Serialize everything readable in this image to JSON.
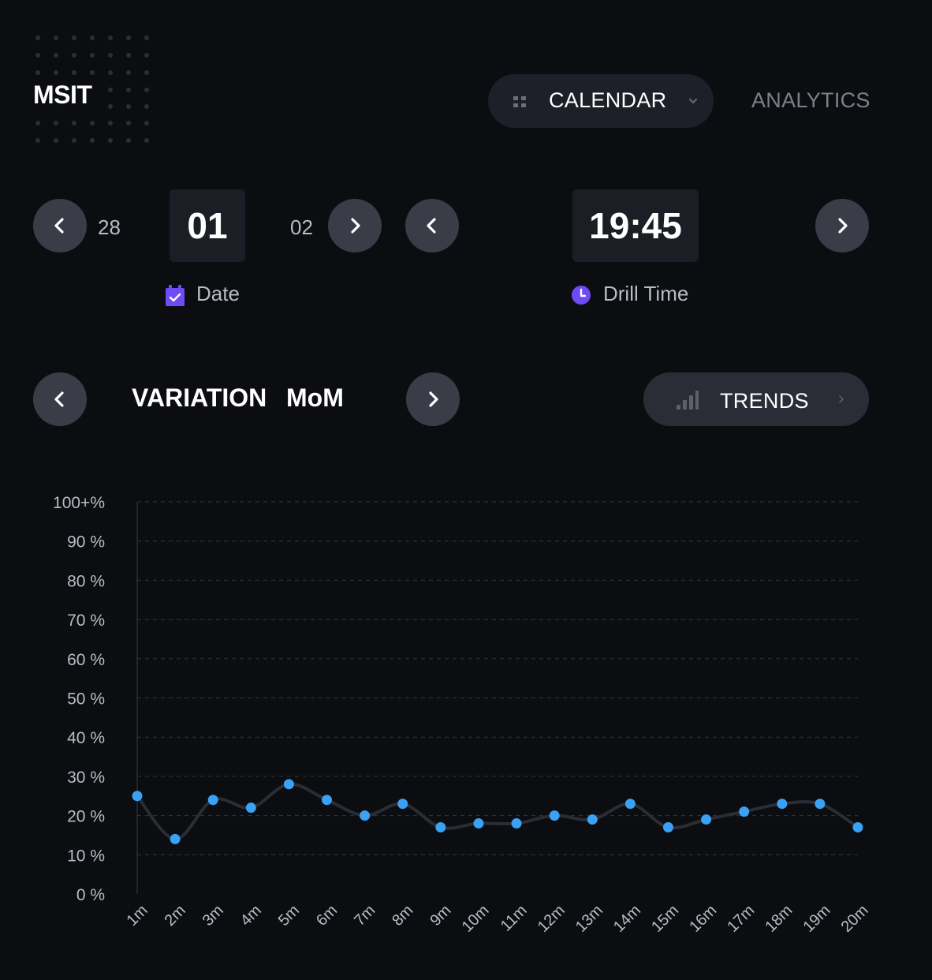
{
  "header": {
    "logo": "MSIT",
    "calendar_tab": {
      "label": "CALENDAR",
      "icon": "grid-icon"
    },
    "analytics_tab": {
      "label": "ANALYTICS"
    }
  },
  "date_picker": {
    "prev": "28",
    "current": "01",
    "next": "02",
    "caption": "Date",
    "icon": "calendar-icon"
  },
  "time_picker": {
    "current": "19:45",
    "caption": "Drill Time",
    "icon": "clock-icon"
  },
  "variation": {
    "title": "VARIATION",
    "subtitle": "MoM",
    "trends_button": "TRENDS"
  },
  "colors": {
    "accent_purple": "#6e4bf5",
    "point_blue": "#3aa1f5",
    "line": "#2b2d35"
  },
  "chart_data": {
    "type": "line",
    "x": [
      "1m",
      "2m",
      "3m",
      "4m",
      "5m",
      "6m",
      "7m",
      "8m",
      "9m",
      "10m",
      "11m",
      "12m",
      "13m",
      "14m",
      "15m",
      "16m",
      "17m",
      "18m",
      "19m",
      "20m"
    ],
    "series": [
      {
        "values": [
          25,
          14,
          24,
          22,
          28,
          24,
          20,
          23,
          17,
          18,
          18,
          20,
          19,
          23,
          17,
          19,
          21,
          23,
          23,
          17
        ]
      }
    ],
    "yticks": [
      "0 %",
      "10 %",
      "20 %",
      "30 %",
      "40 %",
      "50 %",
      "60 %",
      "70 %",
      "80 %",
      "90 %",
      "100+%"
    ],
    "ylim": [
      0,
      100
    ],
    "grid": true,
    "title": "",
    "xlabel": "",
    "ylabel": ""
  }
}
